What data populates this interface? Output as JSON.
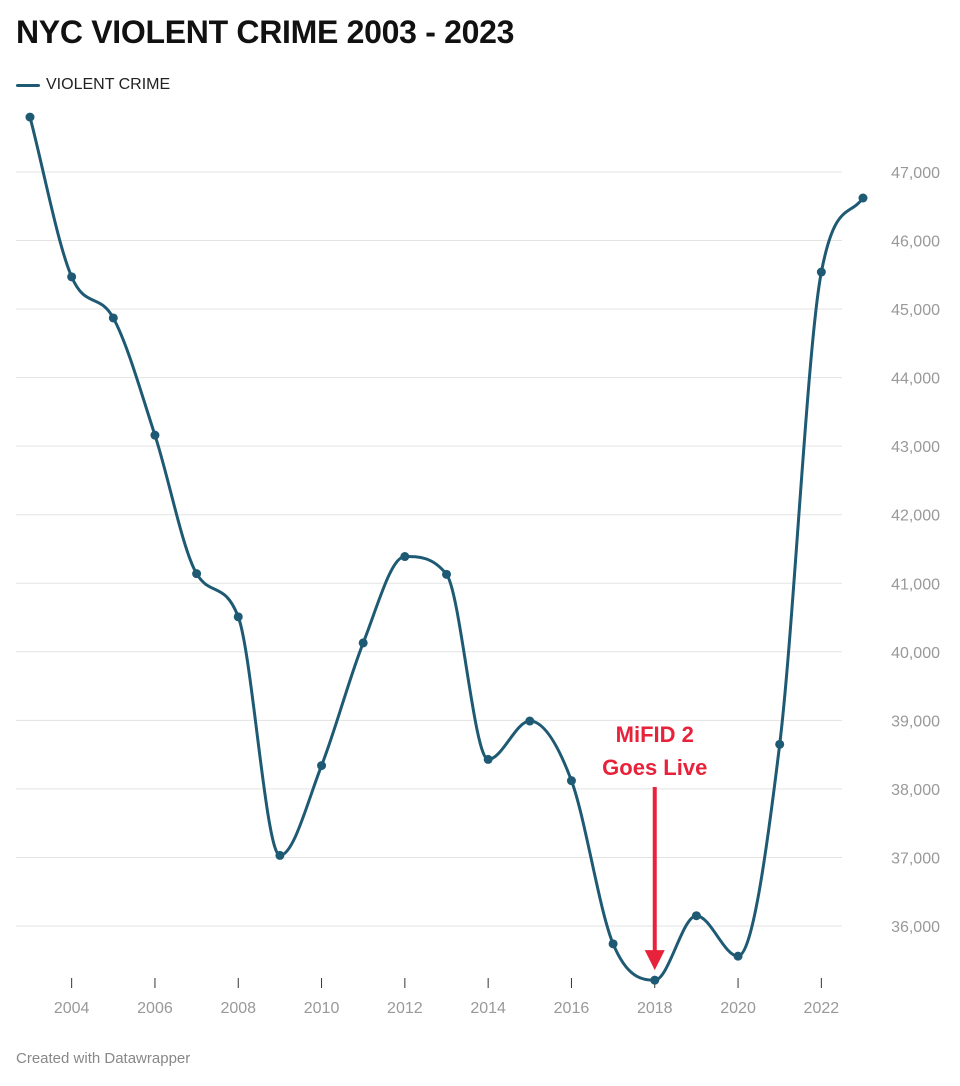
{
  "chart_data": {
    "type": "line",
    "title": "NYC VIOLENT CRIME 2003 - 2023",
    "series": [
      {
        "name": "VIOLENT CRIME",
        "color": "#1e5a74",
        "x": [
          2003,
          2004,
          2005,
          2006,
          2007,
          2008,
          2009,
          2010,
          2011,
          2012,
          2013,
          2014,
          2015,
          2016,
          2017,
          2018,
          2019,
          2020,
          2021,
          2022,
          2023
        ],
        "values": [
          47800,
          45470,
          44870,
          43160,
          41140,
          40510,
          37030,
          38340,
          40130,
          41390,
          41130,
          38430,
          38990,
          38120,
          35740,
          35210,
          36150,
          35560,
          38650,
          45540,
          46620
        ]
      }
    ],
    "x_ticks": [
      "2004",
      "2006",
      "2008",
      "2010",
      "2012",
      "2014",
      "2016",
      "2018",
      "2020",
      "2022"
    ],
    "y_ticks": [
      "36,000",
      "37,000",
      "38,000",
      "39,000",
      "40,000",
      "41,000",
      "42,000",
      "43,000",
      "44,000",
      "45,000",
      "46,000",
      "47,000"
    ],
    "xlim": [
      2003,
      2023
    ],
    "ylim": [
      35210,
      47800
    ],
    "grid": true,
    "legend_position": "top-left",
    "annotation": {
      "lines": [
        "MiFID 2",
        "Goes Live"
      ],
      "x": 2018,
      "color": "#e8223a"
    },
    "credit": "Created with Datawrapper"
  }
}
